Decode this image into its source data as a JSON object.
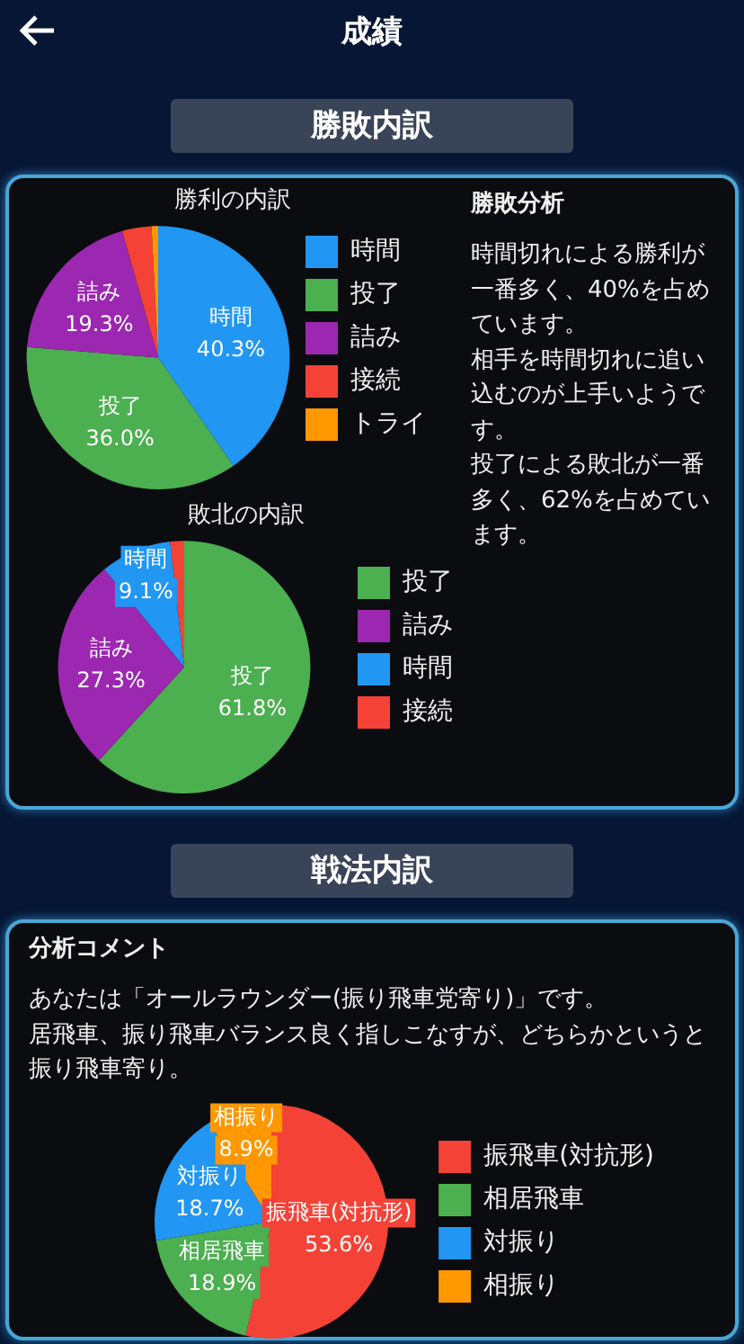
{
  "chart_data": [
    {
      "type": "other",
      "title": "成績"
    },
    {
      "type": "other",
      "title": "勝敗内訳"
    },
    {
      "type": "pie",
      "title": "勝利の内訳",
      "categories": [
        "時間",
        "投了",
        "詰み",
        "接続",
        "トライ"
      ],
      "values": [
        40.3,
        36.0,
        19.3,
        3.6,
        0.8
      ],
      "colors": [
        "#2196f3",
        "#4caf50",
        "#9c27b0",
        "#f44336",
        "#ff9800"
      ],
      "value_labels": [
        "40.3%",
        "36.0%",
        "19.3%",
        null,
        null
      ],
      "legend": "right"
    },
    {
      "type": "other",
      "title": "勝敗分析",
      "annotations": [
        "時間切れによる勝利が一番多く、40%を占めています。",
        "相手を時間切れに追い込むのが上手いようです。",
        "投了による敗北が一番多く、62%を占めています。"
      ]
    },
    {
      "type": "pie",
      "title": "敗北の内訳",
      "categories": [
        "投了",
        "詰み",
        "時間",
        "接続"
      ],
      "values": [
        61.8,
        27.3,
        9.1,
        1.8
      ],
      "colors": [
        "#4caf50",
        "#9c27b0",
        "#2196f3",
        "#f44336"
      ],
      "value_labels": [
        "61.8%",
        "27.3%",
        "9.1%",
        null
      ],
      "legend": "right"
    },
    {
      "type": "other",
      "title": "戦法内訳"
    },
    {
      "type": "other",
      "title": "分析コメント",
      "annotations": [
        "あなたは「オールラウンダー(振り飛車党寄り)」です。",
        "居飛車、振り飛車バランス良く指しこなすが、どちらかというと振り飛車寄り。"
      ]
    },
    {
      "type": "pie",
      "categories": [
        "振飛車(対抗形)",
        "相居飛車",
        "対振り",
        "相振り"
      ],
      "values": [
        53.6,
        18.9,
        18.7,
        8.9
      ],
      "colors": [
        "#f44336",
        "#4caf50",
        "#2196f3",
        "#ff9800"
      ],
      "value_labels": [
        "53.6%",
        "18.9%",
        "18.7%",
        "8.9%"
      ],
      "legend": "right"
    }
  ]
}
